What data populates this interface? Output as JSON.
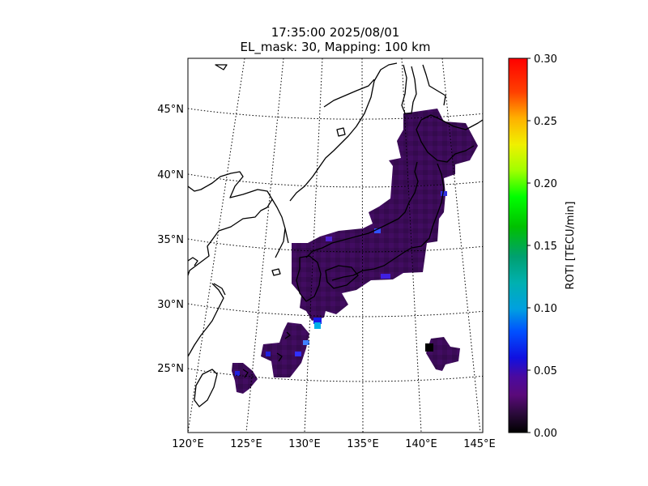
{
  "map": {
    "title_line1": "17:35:00 2025/08/01",
    "title_line2": "EL_mask: 30, Mapping: 100 km",
    "projection": "lambert-conformal",
    "extent": {
      "lon": [
        120,
        145
      ],
      "lat": [
        20,
        49
      ]
    },
    "lat_labels": [
      "25°N",
      "30°N",
      "35°N",
      "40°N",
      "45°N"
    ],
    "lon_labels": [
      "120°E",
      "125°E",
      "130°E",
      "135°E",
      "140°E",
      "145°E"
    ],
    "gridlines": "dotted",
    "coastline_color": "#000000",
    "region": "Japan"
  },
  "colorbar": {
    "label": "ROTI [TECU/min]",
    "ticks": [
      "0.00",
      "0.05",
      "0.10",
      "0.15",
      "0.20",
      "0.25",
      "0.30"
    ],
    "range": [
      0.0,
      0.3
    ],
    "colormap": "nipy_spectral",
    "placement": "right"
  },
  "data_summary": {
    "dominant_roti": 0.035,
    "dominant_color": "#3a0b55",
    "elevated_values": [
      {
        "lat": 29.5,
        "lon": 130.5,
        "roti": 0.08
      },
      {
        "lat": 29.2,
        "lon": 130.8,
        "roti": 0.1
      },
      {
        "lat": 34.7,
        "lon": 137.3,
        "roti": 0.07
      },
      {
        "lat": 26.7,
        "lon": 129.6,
        "roti": 0.06
      },
      {
        "lat": 26.4,
        "lon": 140.2,
        "roti": 0.0
      }
    ]
  }
}
